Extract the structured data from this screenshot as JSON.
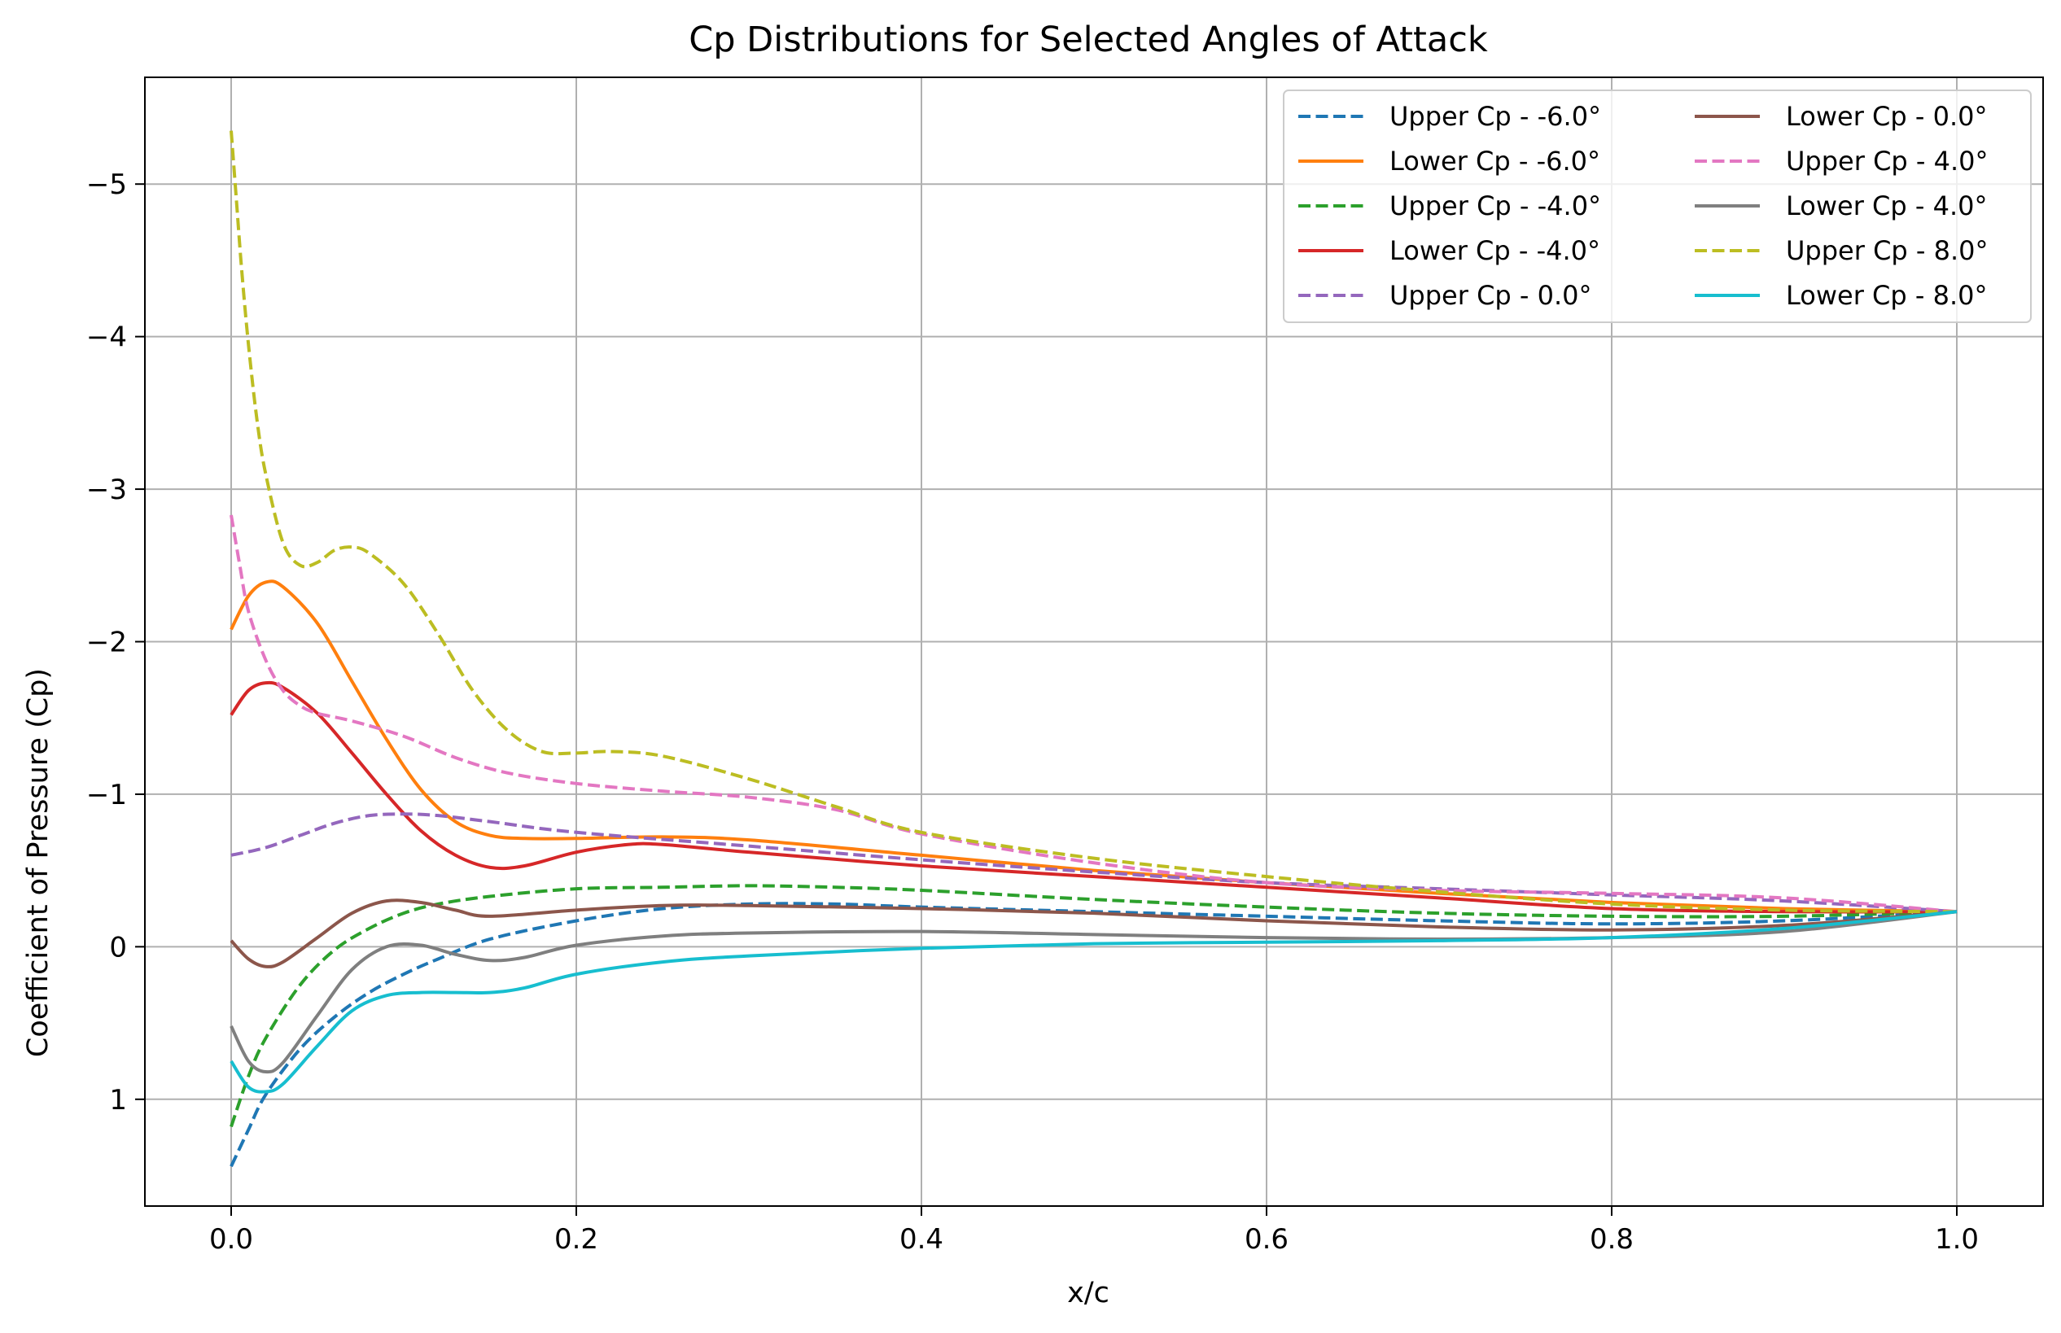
{
  "chart_data": {
    "type": "line",
    "title": "Cp Distributions for Selected Angles of Attack",
    "xlabel": "x/c",
    "ylabel": "Coefficient of Pressure (Cp)",
    "xlim": [
      -0.05,
      1.05
    ],
    "ylim": [
      1.7,
      -5.7
    ],
    "y_inverted": true,
    "grid": true,
    "legend_placement": "top-right",
    "legend_columns": 2,
    "xticks": [
      0.0,
      0.2,
      0.4,
      0.6,
      0.8,
      1.0
    ],
    "xtick_labels": [
      "0.0",
      "0.2",
      "0.4",
      "0.6",
      "0.8",
      "1.0"
    ],
    "yticks": [
      -5,
      -4,
      -3,
      -2,
      -1,
      0,
      1
    ],
    "ytick_labels": [
      "−5",
      "−4",
      "−3",
      "−2",
      "−1",
      "0",
      "1"
    ],
    "series": [
      {
        "name": "Upper Cp - -6.0°",
        "color": "#1f77b4",
        "style": "dashed",
        "x": [
          0.0,
          0.01,
          0.02,
          0.04,
          0.06,
          0.08,
          0.1,
          0.12,
          0.15,
          0.2,
          0.25,
          0.3,
          0.35,
          0.4,
          0.5,
          0.6,
          0.7,
          0.8,
          0.9,
          1.0
        ],
        "y": [
          1.44,
          1.2,
          0.97,
          0.67,
          0.46,
          0.3,
          0.18,
          0.08,
          -0.05,
          -0.17,
          -0.25,
          -0.28,
          -0.28,
          -0.26,
          -0.23,
          -0.2,
          -0.17,
          -0.15,
          -0.17,
          -0.23
        ]
      },
      {
        "name": "Lower Cp - -6.0°",
        "color": "#ff7f0e",
        "style": "solid",
        "x": [
          0.0,
          0.01,
          0.02,
          0.03,
          0.05,
          0.07,
          0.09,
          0.11,
          0.13,
          0.15,
          0.17,
          0.2,
          0.25,
          0.3,
          0.4,
          0.5,
          0.6,
          0.7,
          0.8,
          0.9,
          1.0
        ],
        "y": [
          -2.08,
          -2.3,
          -2.39,
          -2.36,
          -2.12,
          -1.74,
          -1.36,
          -1.03,
          -0.82,
          -0.73,
          -0.71,
          -0.71,
          -0.72,
          -0.7,
          -0.6,
          -0.5,
          -0.42,
          -0.35,
          -0.29,
          -0.25,
          -0.23
        ]
      },
      {
        "name": "Upper Cp - -4.0°",
        "color": "#2ca02c",
        "style": "dashed",
        "x": [
          0.0,
          0.01,
          0.02,
          0.04,
          0.06,
          0.08,
          0.1,
          0.12,
          0.15,
          0.2,
          0.25,
          0.3,
          0.35,
          0.4,
          0.5,
          0.6,
          0.7,
          0.8,
          0.9,
          1.0
        ],
        "y": [
          1.18,
          0.85,
          0.6,
          0.25,
          0.02,
          -0.12,
          -0.22,
          -0.28,
          -0.33,
          -0.38,
          -0.39,
          -0.4,
          -0.39,
          -0.37,
          -0.31,
          -0.26,
          -0.22,
          -0.2,
          -0.2,
          -0.23
        ]
      },
      {
        "name": "Lower Cp - -4.0°",
        "color": "#d62728",
        "style": "solid",
        "x": [
          0.0,
          0.01,
          0.02,
          0.03,
          0.05,
          0.07,
          0.09,
          0.11,
          0.13,
          0.15,
          0.17,
          0.2,
          0.23,
          0.25,
          0.3,
          0.4,
          0.5,
          0.6,
          0.7,
          0.8,
          0.9,
          1.0
        ],
        "y": [
          -1.52,
          -1.68,
          -1.73,
          -1.7,
          -1.53,
          -1.27,
          -1.0,
          -0.76,
          -0.6,
          -0.52,
          -0.53,
          -0.62,
          -0.67,
          -0.67,
          -0.62,
          -0.53,
          -0.46,
          -0.39,
          -0.32,
          -0.25,
          -0.23,
          -0.23
        ]
      },
      {
        "name": "Upper Cp - 0.0°",
        "color": "#9467bd",
        "style": "dashed",
        "x": [
          0.0,
          0.02,
          0.04,
          0.06,
          0.08,
          0.1,
          0.12,
          0.15,
          0.2,
          0.3,
          0.4,
          0.5,
          0.6,
          0.7,
          0.8,
          0.9,
          1.0
        ],
        "y": [
          -0.6,
          -0.65,
          -0.73,
          -0.81,
          -0.86,
          -0.87,
          -0.86,
          -0.82,
          -0.75,
          -0.66,
          -0.57,
          -0.49,
          -0.42,
          -0.38,
          -0.34,
          -0.3,
          -0.23
        ]
      },
      {
        "name": "Lower Cp - 0.0°",
        "color": "#8c564b",
        "style": "solid",
        "x": [
          0.0,
          0.01,
          0.02,
          0.03,
          0.05,
          0.07,
          0.09,
          0.11,
          0.13,
          0.15,
          0.2,
          0.25,
          0.3,
          0.4,
          0.5,
          0.6,
          0.7,
          0.8,
          0.9,
          1.0
        ],
        "y": [
          -0.04,
          0.08,
          0.13,
          0.1,
          -0.06,
          -0.22,
          -0.3,
          -0.29,
          -0.24,
          -0.2,
          -0.24,
          -0.27,
          -0.27,
          -0.25,
          -0.22,
          -0.17,
          -0.13,
          -0.11,
          -0.14,
          -0.23
        ]
      },
      {
        "name": "Upper Cp - 4.0°",
        "color": "#e377c2",
        "style": "dashed",
        "x": [
          0.0,
          0.005,
          0.01,
          0.02,
          0.03,
          0.04,
          0.05,
          0.07,
          0.1,
          0.13,
          0.16,
          0.2,
          0.25,
          0.3,
          0.35,
          0.4,
          0.5,
          0.6,
          0.7,
          0.8,
          0.9,
          1.0
        ],
        "y": [
          -2.83,
          -2.5,
          -2.2,
          -1.88,
          -1.68,
          -1.58,
          -1.53,
          -1.48,
          -1.38,
          -1.24,
          -1.14,
          -1.07,
          -1.02,
          -0.98,
          -0.9,
          -0.74,
          -0.55,
          -0.42,
          -0.37,
          -0.35,
          -0.32,
          -0.23
        ]
      },
      {
        "name": "Lower Cp - 4.0°",
        "color": "#7f7f7f",
        "style": "solid",
        "x": [
          0.0,
          0.01,
          0.02,
          0.03,
          0.05,
          0.07,
          0.09,
          0.11,
          0.13,
          0.15,
          0.17,
          0.2,
          0.25,
          0.3,
          0.4,
          0.5,
          0.6,
          0.7,
          0.8,
          0.9,
          1.0
        ],
        "y": [
          0.52,
          0.75,
          0.82,
          0.76,
          0.45,
          0.15,
          0.0,
          -0.01,
          0.05,
          0.09,
          0.07,
          -0.01,
          -0.07,
          -0.09,
          -0.1,
          -0.08,
          -0.06,
          -0.05,
          -0.06,
          -0.1,
          -0.23
        ]
      },
      {
        "name": "Upper Cp - 8.0°",
        "color": "#bcbd22",
        "style": "dashed",
        "x": [
          0.0,
          0.003,
          0.006,
          0.01,
          0.015,
          0.02,
          0.03,
          0.04,
          0.05,
          0.06,
          0.07,
          0.08,
          0.1,
          0.12,
          0.14,
          0.16,
          0.18,
          0.2,
          0.22,
          0.25,
          0.3,
          0.35,
          0.4,
          0.5,
          0.6,
          0.7,
          0.8,
          0.9,
          1.0
        ],
        "y": [
          -5.35,
          -4.9,
          -4.45,
          -3.95,
          -3.45,
          -3.1,
          -2.65,
          -2.5,
          -2.52,
          -2.6,
          -2.62,
          -2.58,
          -2.38,
          -2.05,
          -1.68,
          -1.42,
          -1.28,
          -1.27,
          -1.28,
          -1.25,
          -1.1,
          -0.92,
          -0.75,
          -0.58,
          -0.46,
          -0.36,
          -0.28,
          -0.24,
          -0.23
        ]
      },
      {
        "name": "Lower Cp - 8.0°",
        "color": "#17becf",
        "style": "solid",
        "x": [
          0.0,
          0.01,
          0.02,
          0.03,
          0.05,
          0.07,
          0.09,
          0.11,
          0.13,
          0.15,
          0.17,
          0.2,
          0.25,
          0.3,
          0.4,
          0.5,
          0.6,
          0.7,
          0.8,
          0.9,
          1.0
        ],
        "y": [
          0.75,
          0.92,
          0.95,
          0.9,
          0.65,
          0.42,
          0.32,
          0.3,
          0.3,
          0.3,
          0.27,
          0.18,
          0.1,
          0.06,
          0.01,
          -0.02,
          -0.03,
          -0.04,
          -0.06,
          -0.12,
          -0.23
        ]
      }
    ]
  }
}
